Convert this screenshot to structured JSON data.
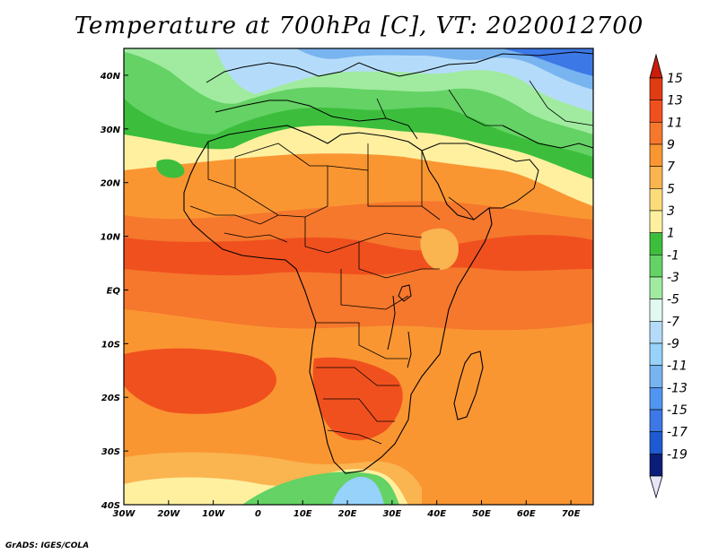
{
  "title": "Temperature at 700hPa [C], VT: 2020012700",
  "credit": "GrADS: IGES/COLA",
  "map": {
    "lon_range": [
      -30,
      75
    ],
    "lat_range": [
      -40,
      45
    ],
    "x_ticks": [
      {
        "lon": -30,
        "label": "30W"
      },
      {
        "lon": -20,
        "label": "20W"
      },
      {
        "lon": -10,
        "label": "10W"
      },
      {
        "lon": 0,
        "label": "0"
      },
      {
        "lon": 10,
        "label": "10E"
      },
      {
        "lon": 20,
        "label": "20E"
      },
      {
        "lon": 30,
        "label": "30E"
      },
      {
        "lon": 40,
        "label": "40E"
      },
      {
        "lon": 50,
        "label": "50E"
      },
      {
        "lon": 60,
        "label": "60E"
      },
      {
        "lon": 70,
        "label": "70E"
      }
    ],
    "y_ticks": [
      {
        "lat": 40,
        "label": "40N"
      },
      {
        "lat": 30,
        "label": "30N"
      },
      {
        "lat": 20,
        "label": "20N"
      },
      {
        "lat": 10,
        "label": "10N"
      },
      {
        "lat": 0,
        "label": "EQ"
      },
      {
        "lat": -10,
        "label": "10S"
      },
      {
        "lat": -20,
        "label": "20S"
      },
      {
        "lat": -30,
        "label": "30S"
      },
      {
        "lat": -40,
        "label": "40S"
      }
    ],
    "field": "temperature-700hPa"
  },
  "colorbar": {
    "levels": [
      {
        "label": "15",
        "color": "#e03c14"
      },
      {
        "label": "13",
        "color": "#f0501e"
      },
      {
        "label": "11",
        "color": "#f5782d"
      },
      {
        "label": "9",
        "color": "#fa9632"
      },
      {
        "label": "7",
        "color": "#fab450"
      },
      {
        "label": "5",
        "color": "#fadc78"
      },
      {
        "label": "3",
        "color": "#fff0a0"
      },
      {
        "label": "1",
        "color": "#3cbe3c"
      },
      {
        "label": "-1",
        "color": "#64d264"
      },
      {
        "label": "-3",
        "color": "#a0eba0"
      },
      {
        "label": "-5",
        "color": "#e1faf0"
      },
      {
        "label": "-7",
        "color": "#b4dcfa"
      },
      {
        "label": "-9",
        "color": "#96d2fa"
      },
      {
        "label": "-11",
        "color": "#78b4f0"
      },
      {
        "label": "-13",
        "color": "#5096f0"
      },
      {
        "label": "-15",
        "color": "#3c78e6"
      },
      {
        "label": "-17",
        "color": "#1e5ad2"
      },
      {
        "label": "-19",
        "color": "#0a1e78"
      }
    ],
    "top_arrow_color": "#c81e0a",
    "bottom_arrow_color": "#e6e6fa"
  }
}
